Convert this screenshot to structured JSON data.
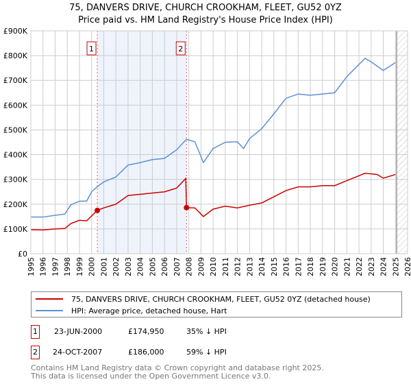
{
  "title": "75, DANVERS DRIVE, CHURCH CROOKHAM, FLEET, GU52 0YZ",
  "subtitle": "Price paid vs. HM Land Registry's House Price Index (HPI)",
  "chart_data": {
    "type": "line",
    "title": "75, DANVERS DRIVE, CHURCH CROOKHAM, FLEET, GU52 0YZ",
    "xlim": [
      1995,
      2026
    ],
    "ylim": [
      0,
      900000
    ],
    "xticks": [
      "1995",
      "1996",
      "1997",
      "1998",
      "1999",
      "2000",
      "2001",
      "2002",
      "2003",
      "2004",
      "2005",
      "2006",
      "2007",
      "2008",
      "2009",
      "2010",
      "2011",
      "2012",
      "2013",
      "2014",
      "2015",
      "2016",
      "2017",
      "2018",
      "2019",
      "2020",
      "2021",
      "2022",
      "2023",
      "2024",
      "2025",
      "2026"
    ],
    "yticks": [
      {
        "v": 0,
        "l": "£0"
      },
      {
        "v": 100000,
        "l": "£100K"
      },
      {
        "v": 200000,
        "l": "£200K"
      },
      {
        "v": 300000,
        "l": "£300K"
      },
      {
        "v": 400000,
        "l": "£400K"
      },
      {
        "v": 500000,
        "l": "£500K"
      },
      {
        "v": 600000,
        "l": "£600K"
      },
      {
        "v": 700000,
        "l": "£700K"
      },
      {
        "v": 800000,
        "l": "£800K"
      },
      {
        "v": 900000,
        "l": "£900K"
      }
    ],
    "grid": true,
    "shaded_range": [
      2000.47,
      2007.81
    ],
    "forecast_hatch_from": 2025.1,
    "series": [
      {
        "name": "75, DANVERS DRIVE, CHURCH CROOKHAM, FLEET, GU52 0YZ (detached house)",
        "color": "#cc0000",
        "x": [
          1995,
          1996,
          1997,
          1997.8,
          1998.3,
          1999,
          1999.6,
          2000.47,
          2001,
          2002,
          2003,
          2004,
          2005,
          2006,
          2007,
          2007.75,
          2007.81,
          2008.5,
          2009.2,
          2010,
          2011,
          2012,
          2013,
          2014,
          2015,
          2016,
          2017,
          2018,
          2019,
          2020,
          2021,
          2022.5,
          2023.5,
          2024,
          2025
        ],
        "y": [
          97000,
          96000,
          100000,
          102000,
          122000,
          135000,
          133000,
          174950,
          185000,
          200000,
          235000,
          240000,
          245000,
          250000,
          265000,
          304000,
          186000,
          185000,
          150000,
          180000,
          192000,
          185000,
          196000,
          205000,
          230000,
          255000,
          270000,
          270000,
          275000,
          275000,
          295000,
          325000,
          320000,
          305000,
          320000
        ]
      },
      {
        "name": "HPI: Average price, detached house, Hart",
        "color": "#5b8fd4",
        "x": [
          1995,
          1996,
          1997,
          1997.8,
          1998.3,
          1999,
          1999.6,
          2000,
          2000.5,
          2001,
          2002,
          2003,
          2004,
          2005,
          2006,
          2007,
          2007.8,
          2008.5,
          2009.2,
          2010,
          2011,
          2012,
          2012.5,
          2013,
          2014,
          2015,
          2016,
          2017,
          2018,
          2019,
          2020,
          2021,
          2022.5,
          2023,
          2024,
          2025
        ],
        "y": [
          148000,
          148000,
          155000,
          160000,
          198000,
          212000,
          213000,
          250000,
          272000,
          290000,
          310000,
          358000,
          368000,
          380000,
          385000,
          420000,
          462000,
          452000,
          368000,
          425000,
          450000,
          452000,
          425000,
          465000,
          505000,
          565000,
          628000,
          645000,
          640000,
          645000,
          650000,
          715000,
          789000,
          775000,
          740000,
          772000
        ]
      }
    ],
    "markers": [
      {
        "label": "1",
        "x": 2000.47,
        "y": 174950
      },
      {
        "label": "2",
        "x": 2007.81,
        "y": 186000
      }
    ]
  },
  "legend": {
    "red": "75, DANVERS DRIVE, CHURCH CROOKHAM, FLEET, GU52 0YZ (detached house)",
    "blue": "HPI: Average price, detached house, Hart"
  },
  "transactions": [
    {
      "num": "1",
      "date": "23-JUN-2000",
      "price": "£174,950",
      "hpi": "35% ↓ HPI"
    },
    {
      "num": "2",
      "date": "24-OCT-2007",
      "price": "£186,000",
      "hpi": "59% ↓ HPI"
    }
  ],
  "footer": {
    "line1": "Contains HM Land Registry data © Crown copyright and database right 2025.",
    "line2": "This data is licensed under the Open Government Licence v3.0."
  }
}
